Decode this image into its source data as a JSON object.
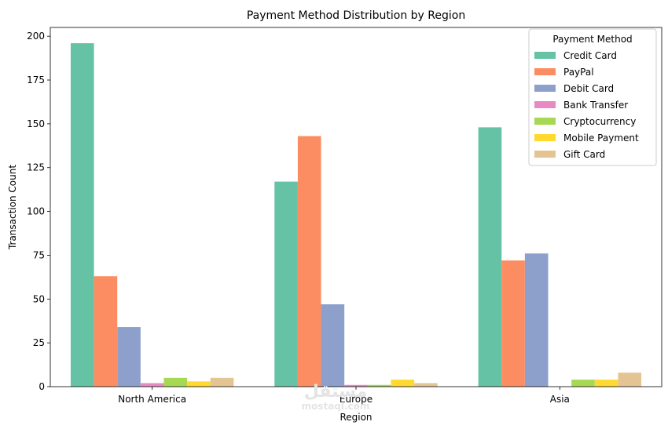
{
  "chart_data": {
    "type": "bar",
    "title": "Payment Method Distribution by Region",
    "xlabel": "Region",
    "ylabel": "Transaction Count",
    "categories": [
      "North America",
      "Europe",
      "Asia"
    ],
    "ylim": [
      0,
      205
    ],
    "yticks": [
      0,
      25,
      50,
      75,
      100,
      125,
      150,
      175,
      200
    ],
    "legend": {
      "title": "Payment Method",
      "placement": "top-right"
    },
    "grid": false,
    "series": [
      {
        "name": "Credit Card",
        "color": "#66c2a5",
        "values": [
          196,
          117,
          148
        ]
      },
      {
        "name": "PayPal",
        "color": "#fc8d62",
        "values": [
          63,
          143,
          72
        ]
      },
      {
        "name": "Debit Card",
        "color": "#8da0cb",
        "values": [
          34,
          47,
          76
        ]
      },
      {
        "name": "Bank Transfer",
        "color": "#e78ac3",
        "values": [
          2,
          1,
          0
        ]
      },
      {
        "name": "Cryptocurrency",
        "color": "#a6d854",
        "values": [
          5,
          1,
          4
        ]
      },
      {
        "name": "Mobile Payment",
        "color": "#ffd92f",
        "values": [
          3,
          4,
          4
        ]
      },
      {
        "name": "Gift Card",
        "color": "#e5c494",
        "values": [
          5,
          2,
          8
        ]
      }
    ]
  },
  "watermark": {
    "logo": "مستقل",
    "text": "mostaql.com"
  }
}
